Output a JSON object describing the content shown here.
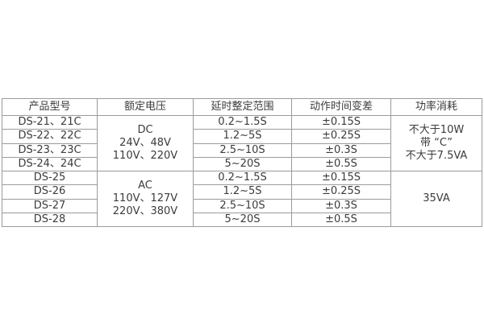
{
  "colors": {
    "background": "#ffffff",
    "border": "#9b9b9b",
    "text": "#3b3b3b"
  },
  "table": {
    "headers": [
      "产品型号",
      "额定电压",
      "延时整定范围",
      "动作时间变差",
      "功率消耗"
    ],
    "groups": [
      {
        "voltage_lines": [
          "DC",
          "24V、48V",
          "110V、220V"
        ],
        "power_lines": [
          "不大于10W",
          "带 “C”",
          "不大于7.5VA"
        ],
        "rows": [
          {
            "model": "DS-21、21C",
            "range": "0.2~1.5S",
            "variation": "±0.15S"
          },
          {
            "model": "DS-22、22C",
            "range": "1.2~5S",
            "variation": "±0.25S"
          },
          {
            "model": "DS-23、23C",
            "range": "2.5~10S",
            "variation": "±0.3S"
          },
          {
            "model": "DS-24、24C",
            "range": "5~20S",
            "variation": "±0.5S"
          }
        ]
      },
      {
        "voltage_lines": [
          "AC",
          "110V、127V",
          "220V、380V"
        ],
        "power_lines": [
          "35VA"
        ],
        "rows": [
          {
            "model": "DS-25",
            "range": "0.2~1.5S",
            "variation": "±0.15S"
          },
          {
            "model": "DS-26",
            "range": "1.2~5S",
            "variation": "±0.25S"
          },
          {
            "model": "DS-27",
            "range": "2.5~10S",
            "variation": "±0.3S"
          },
          {
            "model": "DS-28",
            "range": "5~20S",
            "variation": "±0.5S"
          }
        ]
      }
    ]
  }
}
